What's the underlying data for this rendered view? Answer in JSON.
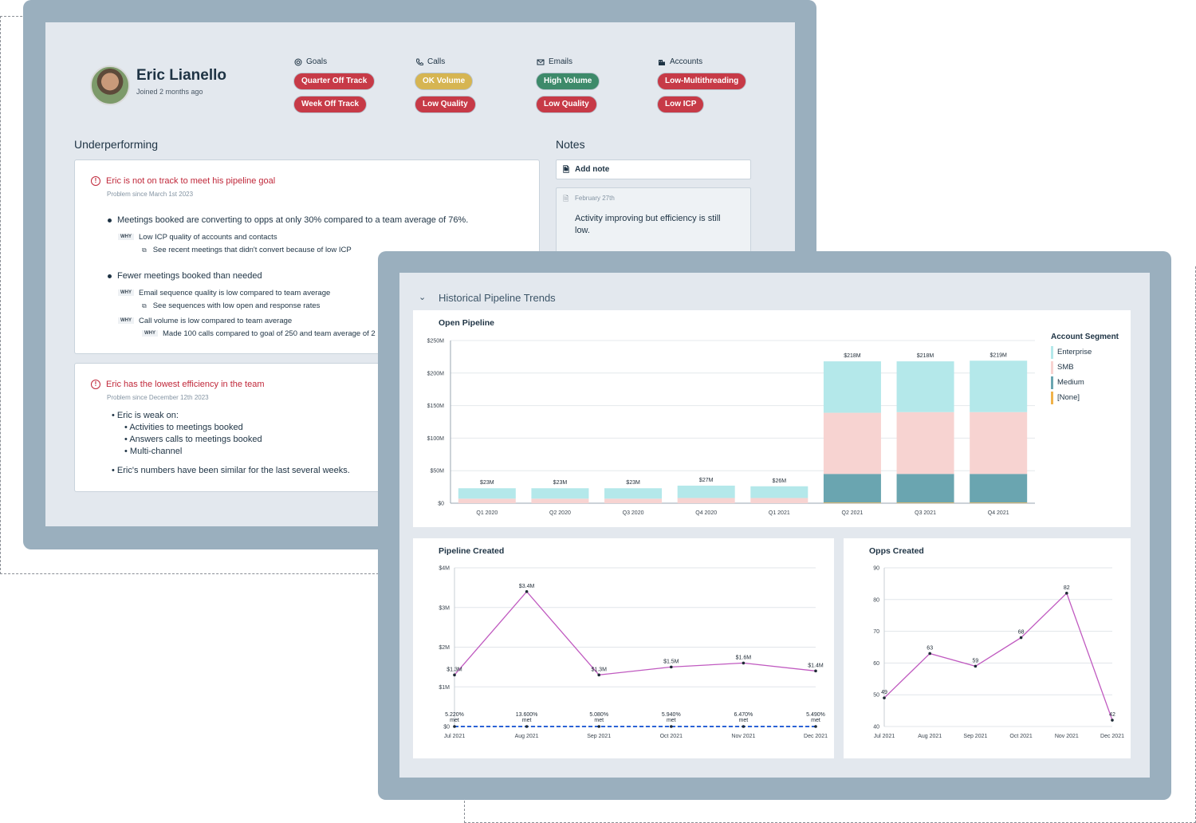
{
  "profile": {
    "name": "Eric Lianello",
    "joined": "Joined 2 months ago"
  },
  "categories": [
    {
      "label": "Goals",
      "icon": "target-icon",
      "pills": [
        {
          "text": "Quarter Off Track",
          "status": "red"
        },
        {
          "text": "Week Off Track",
          "status": "red"
        }
      ]
    },
    {
      "label": "Calls",
      "icon": "phone-icon",
      "pills": [
        {
          "text": "OK Volume",
          "status": "yellow"
        },
        {
          "text": "Low Quality",
          "status": "red"
        }
      ]
    },
    {
      "label": "Emails",
      "icon": "mail-icon",
      "pills": [
        {
          "text": "High Volume",
          "status": "green"
        },
        {
          "text": "Low Quality",
          "status": "red"
        }
      ]
    },
    {
      "label": "Accounts",
      "icon": "building-icon",
      "pills": [
        {
          "text": "Low-Multithreading",
          "status": "red"
        },
        {
          "text": "Low ICP",
          "status": "red"
        }
      ]
    }
  ],
  "colors": {
    "red": "#c73a47",
    "yellow": "#d6b552",
    "green": "#3d8a6a",
    "frame": "#9aafbe",
    "line": "#c05ac0",
    "goal_line": "#2b63d6"
  },
  "underperforming": {
    "title": "Underperforming",
    "problem1": {
      "title": "Eric is not on track to meet his pipeline goal",
      "since": "Problem since March 1st 2023",
      "bullet1": "Meetings booked are converting to opps at only 30% compared to a team average of 76%.",
      "why1": "Low ICP quality of accounts and contacts",
      "link1": "See recent meetings that didn't convert because of low ICP",
      "bullet2": "Fewer meetings booked than needed",
      "why2": "Email sequence quality is low compared to team average",
      "link2": "See sequences with low open and response rates",
      "why3": "Call volume is low compared to team average",
      "why4": "Made 100 calls compared to goal of 250 and team average of 2",
      "why_tag": "WHY"
    },
    "problem2": {
      "title": "Eric has the lowest efficiency in the team",
      "since": "Problem since December 12th 2023",
      "weak_on": "Eric is weak on:",
      "items": [
        "Activities to meetings booked",
        "Answers calls to meetings booked",
        "Multi-channel"
      ],
      "similar": "Eric's numbers have been similar for the last several weeks."
    }
  },
  "notes": {
    "title": "Notes",
    "add_label": "Add note",
    "note_date": "February 27th",
    "note_text": "Activity improving but efficiency is still low."
  },
  "trends": {
    "title": "Historical Pipeline Trends"
  },
  "chart_data": [
    {
      "type": "bar",
      "title": "Open Pipeline",
      "categories": [
        "Q1 2020",
        "Q2 2020",
        "Q3 2020",
        "Q4 2020",
        "Q1 2021",
        "Q2 2021",
        "Q3 2021",
        "Q4 2021"
      ],
      "totals_labels": [
        "$23M",
        "$23M",
        "$23M",
        "$27M",
        "$26M",
        "$218M",
        "$218M",
        "$219M"
      ],
      "series": [
        {
          "name": "[None]",
          "color": "#f0b24a",
          "values": [
            0,
            0,
            0,
            0,
            0,
            1,
            1,
            1
          ]
        },
        {
          "name": "Medium",
          "color": "#6aa5b0",
          "values": [
            0,
            0,
            0,
            0,
            0,
            44,
            44,
            44
          ]
        },
        {
          "name": "SMB",
          "color": "#f7d3d1",
          "values": [
            7,
            7,
            7,
            8,
            8,
            94,
            95,
            95
          ]
        },
        {
          "name": "Enterprise",
          "color": "#b4e8ea",
          "values": [
            16,
            16,
            16,
            19,
            18,
            79,
            78,
            79
          ]
        }
      ],
      "ytick_labels": [
        "$0",
        "$50M",
        "$100M",
        "$150M",
        "$200M",
        "$250M"
      ],
      "ylim": [
        0,
        250
      ],
      "legend_title": "Account Segment",
      "legend_order": [
        "Enterprise",
        "SMB",
        "Medium",
        "[None]"
      ],
      "legend_position": "right"
    },
    {
      "type": "line",
      "title": "Pipeline Created",
      "x": [
        "Jul 2021",
        "Aug 2021",
        "Sep 2021",
        "Oct 2021",
        "Nov 2021",
        "Dec 2021"
      ],
      "values": [
        1.3,
        3.4,
        1.3,
        1.5,
        1.6,
        1.4
      ],
      "value_labels": [
        "$1.3M",
        "$3.4M",
        "$1.3M",
        "$1.5M",
        "$1.6M",
        "$1.4M"
      ],
      "goal_values": [
        0,
        0,
        0,
        0,
        0,
        0
      ],
      "goal_labels": [
        "5.220% met",
        "13.600% met",
        "5.080% met",
        "5.940% met",
        "6.470% met",
        "5.490% met"
      ],
      "ytick_labels": [
        "$0",
        "$1M",
        "$2M",
        "$3M",
        "$4M"
      ],
      "ylim": [
        0,
        4
      ]
    },
    {
      "type": "line",
      "title": "Opps Created",
      "x": [
        "Jul 2021",
        "Aug 2021",
        "Sep 2021",
        "Oct 2021",
        "Nov 2021",
        "Dec 2021"
      ],
      "values": [
        49,
        63,
        59,
        68,
        82,
        42
      ],
      "ytick_labels": [
        "40",
        "50",
        "60",
        "70",
        "80",
        "90"
      ],
      "ylim": [
        40,
        90
      ]
    }
  ]
}
